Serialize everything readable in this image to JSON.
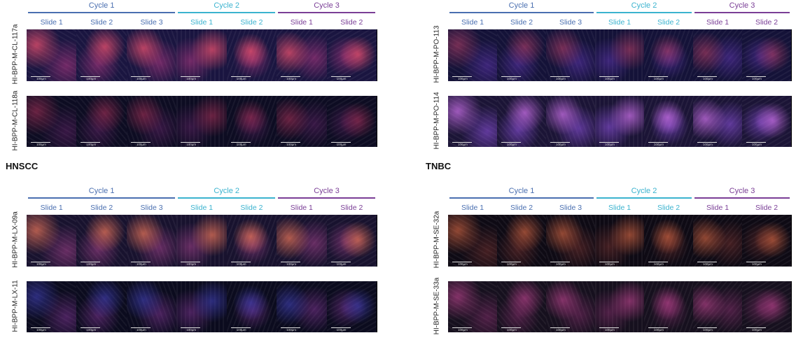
{
  "labels": [
    "HNSCC",
    "TNBC"
  ],
  "scale_bar": "100µm",
  "panels": [
    {
      "cycles": [
        {
          "name": "Cycle 1",
          "color": "#4a6fb0",
          "slides": [
            "Slide 1",
            "Slide 2",
            "Slide 3"
          ]
        },
        {
          "name": "Cycle 2",
          "color": "#3bb3cf",
          "slides": [
            "Slide 1",
            "Slide 2"
          ]
        },
        {
          "name": "Cycle 3",
          "color": "#7a3e96",
          "slides": [
            "Slide 1",
            "Slide 2"
          ]
        }
      ],
      "samples": [
        "HI-BPP-M-CL-117a",
        "HI-BPP-M-CL-118a"
      ]
    },
    {
      "cycles": [
        {
          "name": "Cycle 1",
          "color": "#4a6fb0",
          "slides": [
            "Slide 1",
            "Slide 2",
            "Slide 3"
          ]
        },
        {
          "name": "Cycle 2",
          "color": "#3bb3cf",
          "slides": [
            "Slide 1",
            "Slide 2"
          ]
        },
        {
          "name": "Cycle 3",
          "color": "#7a3e96",
          "slides": [
            "Slide 1",
            "Slide 2"
          ]
        }
      ],
      "samples": [
        "HI-BPP-M-PO-113",
        "HI-BPP-M-PO-114"
      ]
    },
    {
      "cycles": [
        {
          "name": "Cycle 1",
          "color": "#4a6fb0",
          "slides": [
            "Slide 1",
            "Slide 2",
            "Slide 3"
          ]
        },
        {
          "name": "Cycle 2",
          "color": "#3bb3cf",
          "slides": [
            "Slide 1",
            "Slide 2"
          ]
        },
        {
          "name": "Cycle 3",
          "color": "#7a3e96",
          "slides": [
            "Slide 1",
            "Slide 2"
          ]
        }
      ],
      "samples": [
        "HI-BPP-M-LX-09a",
        "HI-BPP-M-LX-11"
      ]
    },
    {
      "cycles": [
        {
          "name": "Cycle 1",
          "color": "#4a6fb0",
          "slides": [
            "Slide 1",
            "Slide 2",
            "Slide 3"
          ]
        },
        {
          "name": "Cycle 2",
          "color": "#3bb3cf",
          "slides": [
            "Slide 1",
            "Slide 2"
          ]
        },
        {
          "name": "Cycle 3",
          "color": "#7a3e96",
          "slides": [
            "Slide 1",
            "Slide 2"
          ]
        }
      ],
      "samples": [
        "HI-BPP-M-SE-32a",
        "HI-BPP-M-SE-33a"
      ]
    }
  ]
}
